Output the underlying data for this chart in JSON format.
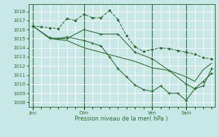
{
  "bg_color": "#c8e8e8",
  "grid_color": "#ffffff",
  "line_color": "#2a6b2a",
  "ylabel_ticks": [
    1008,
    1009,
    1010,
    1011,
    1012,
    1013,
    1014,
    1015,
    1016,
    1017,
    1018
  ],
  "ylim": [
    1007.5,
    1018.8
  ],
  "xlim": [
    -3,
    128
  ],
  "xlabel": "Pression niveau de la mer( hPa )",
  "day_labels": [
    "Jeu",
    "Dim",
    "Ven",
    "Sam"
  ],
  "day_positions": [
    0,
    36,
    84,
    108
  ],
  "series1_x": [
    0,
    6,
    12,
    18,
    24,
    30,
    36,
    42,
    48,
    54,
    60,
    66,
    72,
    78,
    84,
    90,
    96,
    102,
    108,
    114,
    120,
    126
  ],
  "series1_y": [
    1016.4,
    1016.3,
    1016.2,
    1016.1,
    1017.2,
    1017.0,
    1017.7,
    1017.3,
    1017.3,
    1018.1,
    1017.1,
    1015.3,
    1014.1,
    1013.6,
    1013.8,
    1014.0,
    1013.9,
    1013.7,
    1013.5,
    1013.3,
    1012.9,
    1012.8
  ],
  "series2_x": [
    12,
    18,
    24,
    36,
    42,
    48,
    54,
    60,
    66,
    72,
    78,
    84,
    90,
    96,
    102,
    108,
    114,
    120,
    126
  ],
  "series2_y": [
    1015.1,
    1015.0,
    1015.2,
    1014.8,
    1014.5,
    1014.2,
    1013.0,
    1011.7,
    1010.8,
    1009.9,
    1009.4,
    1009.2,
    1009.8,
    1009.0,
    1009.0,
    1008.2,
    1009.5,
    1010.3,
    1011.2
  ],
  "series3_x": [
    0,
    12,
    18,
    24,
    36,
    48,
    60,
    72,
    84,
    96,
    108,
    114,
    120,
    126
  ],
  "series3_y": [
    1016.4,
    1015.1,
    1015.0,
    1015.0,
    1016.0,
    1015.5,
    1015.5,
    1013.5,
    1012.8,
    1011.5,
    1010.0,
    1009.5,
    1009.8,
    1011.7
  ],
  "series4_x": [
    0,
    12,
    24,
    36,
    48,
    60,
    72,
    84,
    96,
    108,
    114,
    120,
    126
  ],
  "series4_y": [
    1016.4,
    1015.0,
    1014.8,
    1014.0,
    1013.5,
    1013.0,
    1012.5,
    1011.8,
    1011.5,
    1010.8,
    1010.3,
    1011.6,
    1012.3
  ]
}
